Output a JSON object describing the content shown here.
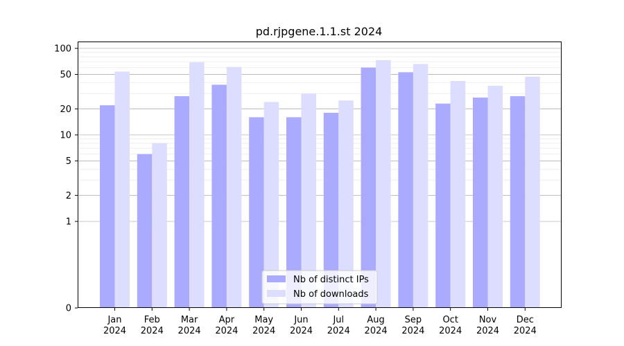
{
  "chart_data": {
    "type": "bar",
    "title": "pd.rjpgene.1.1.st 2024",
    "xlabel": "",
    "ylabel": "",
    "yscale": "symlog",
    "ylim": [
      0,
      120
    ],
    "yticks": [
      {
        "value": 0,
        "label": "0"
      },
      {
        "value": 1,
        "label": "1"
      },
      {
        "value": 2,
        "label": "2"
      },
      {
        "value": 5,
        "label": "5"
      },
      {
        "value": 10,
        "label": "10"
      },
      {
        "value": 20,
        "label": "20"
      },
      {
        "value": 50,
        "label": "50"
      },
      {
        "value": 100,
        "label": "100"
      }
    ],
    "grid": true,
    "legend_position": "bottom-center",
    "categories": [
      {
        "month": "Jan",
        "year": "2024"
      },
      {
        "month": "Feb",
        "year": "2024"
      },
      {
        "month": "Mar",
        "year": "2024"
      },
      {
        "month": "Apr",
        "year": "2024"
      },
      {
        "month": "May",
        "year": "2024"
      },
      {
        "month": "Jun",
        "year": "2024"
      },
      {
        "month": "Jul",
        "year": "2024"
      },
      {
        "month": "Aug",
        "year": "2024"
      },
      {
        "month": "Sep",
        "year": "2024"
      },
      {
        "month": "Oct",
        "year": "2024"
      },
      {
        "month": "Nov",
        "year": "2024"
      },
      {
        "month": "Dec",
        "year": "2024"
      }
    ],
    "series": [
      {
        "name": "Nb of distinct IPs",
        "color": "#aaaaff",
        "values": [
          22,
          6,
          28,
          38,
          16,
          16,
          18,
          60,
          53,
          23,
          27,
          28
        ]
      },
      {
        "name": "Nb of downloads",
        "color": "#ddddff",
        "values": [
          54,
          8,
          69,
          61,
          24,
          30,
          25,
          73,
          66,
          42,
          37,
          47
        ]
      }
    ]
  }
}
